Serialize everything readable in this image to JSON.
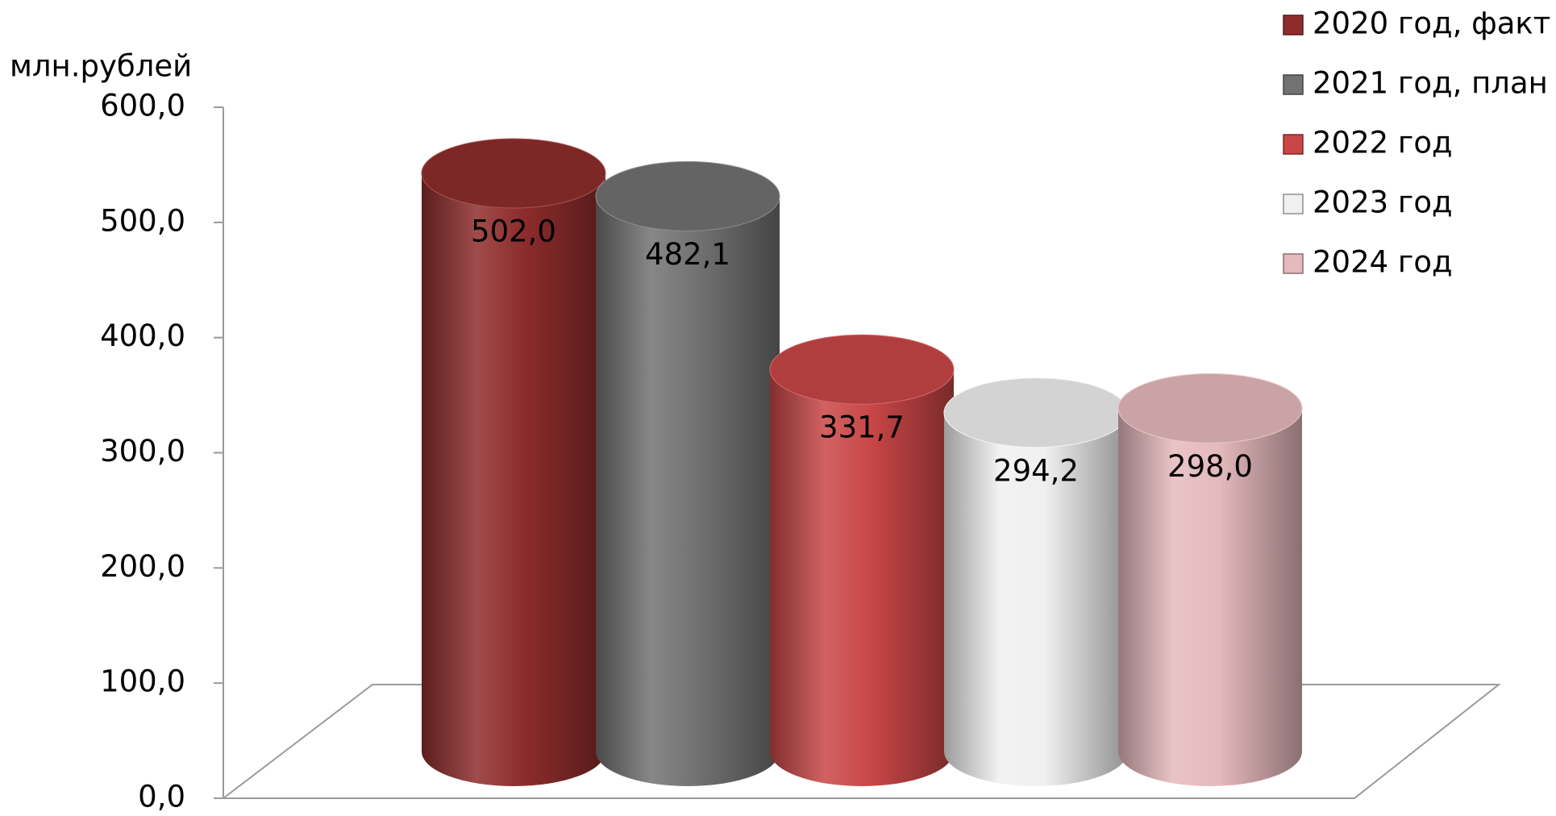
{
  "chart_data": {
    "type": "cylinder",
    "y_label": "млн.рублей",
    "ylim": [
      0,
      600
    ],
    "yticks": [
      {
        "value": 0,
        "label": "0,0"
      },
      {
        "value": 100,
        "label": "100,0"
      },
      {
        "value": 200,
        "label": "200,0"
      },
      {
        "value": 300,
        "label": "300,0"
      },
      {
        "value": 400,
        "label": "400,0"
      },
      {
        "value": 500,
        "label": "500,0"
      },
      {
        "value": 600,
        "label": "600,0"
      }
    ],
    "series": [
      {
        "name": "2020 год, факт",
        "color": "#8e2c2c",
        "values": [
          502.0
        ],
        "value_labels": [
          "502,0"
        ]
      },
      {
        "name": "2021 год, план",
        "color": "#727272",
        "values": [
          482.1
        ],
        "value_labels": [
          "482,1"
        ]
      },
      {
        "name": "2022 год",
        "color": "#c94646",
        "values": [
          331.7
        ],
        "value_labels": [
          "331,7"
        ]
      },
      {
        "name": "2023 год",
        "color": "#f0f0f0",
        "values": [
          294.2
        ],
        "value_labels": [
          "294,2"
        ]
      },
      {
        "name": "2024 год",
        "color": "#e5b9bd",
        "values": [
          298.0
        ],
        "value_labels": [
          "298,0"
        ]
      }
    ],
    "legend": "top-right"
  }
}
